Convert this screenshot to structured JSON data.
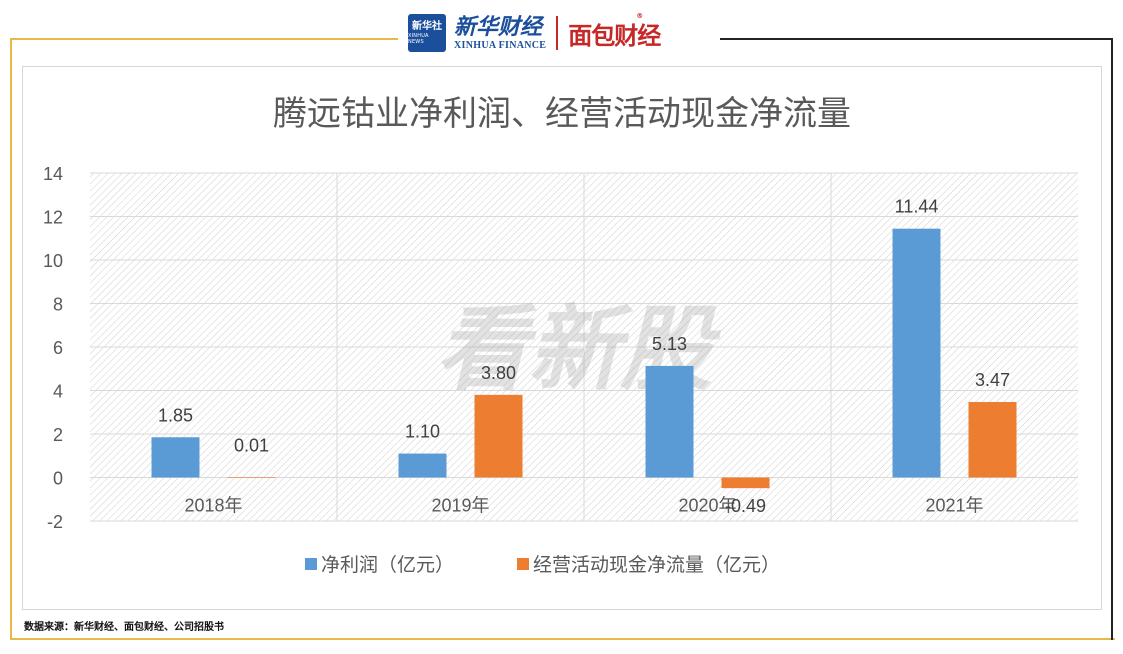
{
  "header": {
    "xinhua_logo_cn": "新华社",
    "xinhua_logo_en": "XINHUA NEWS",
    "finance_cn": "新华财经",
    "finance_en": "XINHUA FINANCE",
    "mianbao": "面包财经",
    "mianbao_mark": "®"
  },
  "watermark": "看新股",
  "source": "数据来源：新华财经、面包财经、公司招股书",
  "colors": {
    "series1": "#5b9bd5",
    "series2": "#ed7d31",
    "gridline": "#d9d9d9",
    "axis_text": "#595959",
    "title_text": "#595959"
  },
  "chart_data": {
    "type": "bar",
    "title": "腾远钴业净利润、经营活动现金净流量",
    "categories": [
      "2018年",
      "2019年",
      "2020年",
      "2021年"
    ],
    "series": [
      {
        "name": "净利润（亿元）",
        "values": [
          1.85,
          1.1,
          5.13,
          11.44
        ],
        "labels": [
          "1.85",
          "1.10",
          "5.13",
          "11.44"
        ]
      },
      {
        "name": "经营活动现金净流量（亿元）",
        "values": [
          0.01,
          3.8,
          -0.49,
          3.47
        ],
        "labels": [
          "0.01",
          "3.80",
          "-0.49",
          "3.47"
        ]
      }
    ],
    "ylim": [
      -2,
      14
    ],
    "yticks": [
      "-2",
      "0",
      "2",
      "4",
      "6",
      "8",
      "10",
      "12",
      "14"
    ],
    "xlabel": "",
    "ylabel": "",
    "legend_position": "bottom",
    "grid": true
  }
}
